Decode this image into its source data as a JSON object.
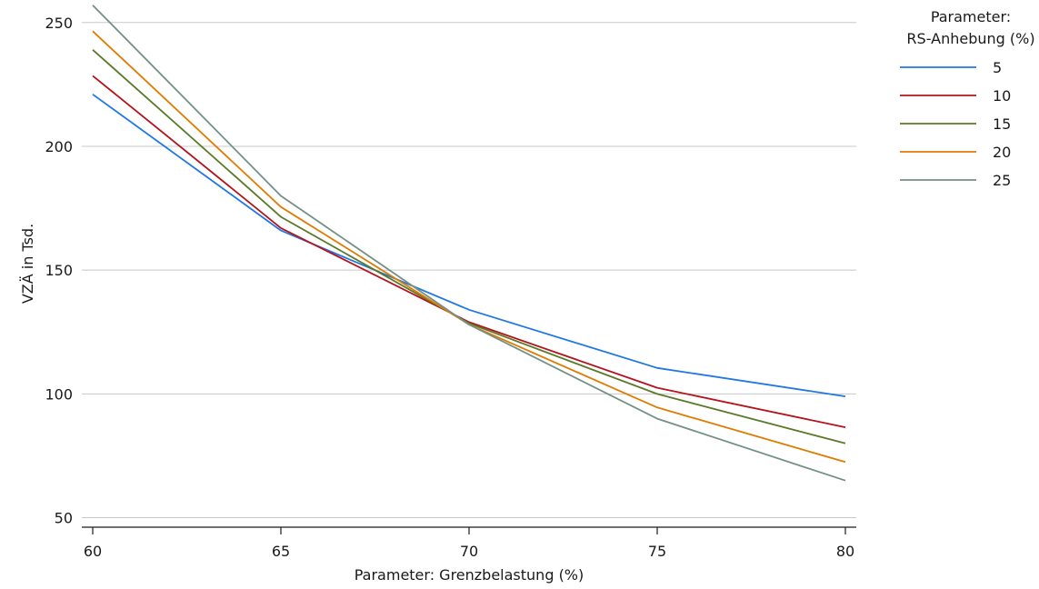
{
  "chart_data": {
    "type": "line",
    "xlabel": "Parameter: Grenzbelastung (%)",
    "ylabel": "VZÄ in Tsd.",
    "x": [
      60,
      65,
      70,
      75,
      80
    ],
    "xticks": [
      60,
      65,
      70,
      75,
      80
    ],
    "yticks": [
      50,
      100,
      150,
      200,
      250
    ],
    "xlim": [
      60,
      80
    ],
    "ylim": [
      48,
      258
    ],
    "grid": true,
    "legend": {
      "title_line1": "Parameter:",
      "title_line2": "RS-Anhebung (%)",
      "placement": "right"
    },
    "series": [
      {
        "name": "5",
        "color": "#1f78e4",
        "values": [
          221,
          166,
          134,
          110.5,
          99
        ]
      },
      {
        "name": "10",
        "color": "#b5121b",
        "values": [
          228.5,
          167,
          129,
          102.5,
          86.5
        ]
      },
      {
        "name": "15",
        "color": "#5a7a2a",
        "values": [
          239,
          171.5,
          128.5,
          100,
          80
        ]
      },
      {
        "name": "20",
        "color": "#e07b00",
        "values": [
          246.5,
          175.5,
          128,
          94.5,
          72.5
        ]
      },
      {
        "name": "25",
        "color": "#739188",
        "values": [
          257,
          180,
          128,
          90,
          65
        ]
      }
    ]
  }
}
